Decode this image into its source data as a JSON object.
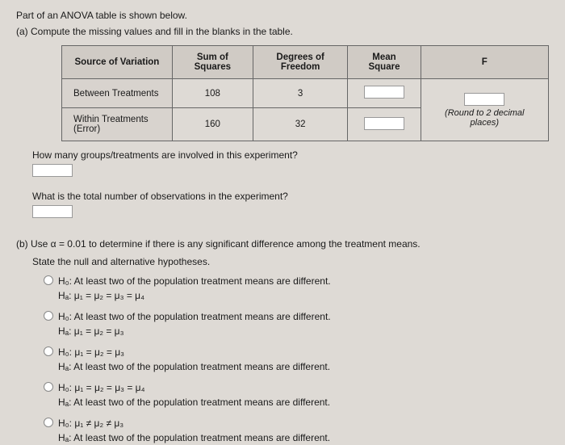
{
  "intro": "Part of an ANOVA table is shown below.",
  "part_a": "(a)  Compute the missing values and fill in the blanks in the table.",
  "table": {
    "headers": [
      "Source of Variation",
      "Sum of Squares",
      "Degrees of Freedom",
      "Mean Square",
      "F"
    ],
    "rows": [
      {
        "src": "Between Treatments",
        "ss": "108",
        "df": "3"
      },
      {
        "src": "Within Treatments (Error)",
        "ss": "160",
        "df": "32"
      }
    ],
    "round_note": "(Round to 2 decimal places)"
  },
  "q_groups": "How many groups/treatments are involved in this experiment?",
  "q_total": "What is the total number of observations in the experiment?",
  "part_b": "(b)  Use α = 0.01 to determine if there is any significant difference among the treatment means.",
  "state": "State the null and alternative hypotheses.",
  "options": [
    {
      "h0": "H₀: At least two of the population treatment means are different.",
      "ha": "Hₐ: μ₁ = μ₂ = μ₃ = μ₄"
    },
    {
      "h0": "H₀: At least two of the population treatment means are different.",
      "ha": "Hₐ: μ₁ = μ₂ = μ₃"
    },
    {
      "h0": "H₀: μ₁ = μ₂ = μ₃",
      "ha": "Hₐ: At least two of the population treatment means are different."
    },
    {
      "h0": "H₀: μ₁ = μ₂ = μ₃ = μ₄",
      "ha": "Hₐ: At least two of the population treatment means are different."
    },
    {
      "h0": "H₀: μ₁ ≠ μ₂ ≠ μ₃",
      "ha": "Hₐ: At least two of the population treatment means are different."
    }
  ]
}
